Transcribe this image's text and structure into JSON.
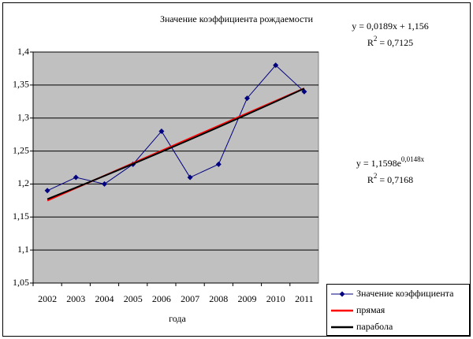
{
  "chart_data": {
    "type": "line",
    "title": "Значение коэффициента рождаемости",
    "x_label": "года",
    "categories": [
      "2002",
      "2003",
      "2004",
      "2005",
      "2006",
      "2007",
      "2008",
      "2009",
      "2010",
      "2011"
    ],
    "series": [
      {
        "name": "Значение коэффициента",
        "color": "#000080",
        "marker": "diamond",
        "values": [
          1.19,
          1.21,
          1.2,
          1.23,
          1.28,
          1.21,
          1.23,
          1.33,
          1.38,
          1.34
        ]
      },
      {
        "name": "прямая",
        "color": "#ff0000",
        "marker": "none",
        "values": [
          1.1749,
          1.1938,
          1.2127,
          1.2316,
          1.2505,
          1.2694,
          1.2883,
          1.3072,
          1.3261,
          1.345
        ]
      },
      {
        "name": "парабола",
        "color": "#000000",
        "marker": "none",
        "values": [
          1.1771,
          1.1946,
          1.2124,
          1.2305,
          1.2488,
          1.2674,
          1.2863,
          1.3055,
          1.3249,
          1.3447
        ]
      }
    ],
    "ylim": [
      1.05,
      1.4
    ],
    "yticks": [
      {
        "value": 1.05,
        "label": "1,05"
      },
      {
        "value": 1.1,
        "label": "1,1"
      },
      {
        "value": 1.15,
        "label": "1,15"
      },
      {
        "value": 1.2,
        "label": "1,2"
      },
      {
        "value": 1.25,
        "label": "1,25"
      },
      {
        "value": 1.3,
        "label": "1,3"
      },
      {
        "value": 1.35,
        "label": "1,35"
      },
      {
        "value": 1.4,
        "label": "1,4"
      }
    ],
    "grid": true,
    "legend": "bottom-right",
    "annotations": [
      [
        [
          "y = 0,0189x + 1,156"
        ]
      ],
      [
        [
          "R"
        ],
        [
          "2",
          "sup"
        ],
        [
          " = 0,7125"
        ]
      ],
      [
        [
          "y = 1,1598e"
        ],
        [
          "0,0148x",
          "sup"
        ]
      ],
      [
        [
          "R"
        ],
        [
          "2",
          "sup"
        ],
        [
          " = 0,7168"
        ]
      ]
    ]
  }
}
